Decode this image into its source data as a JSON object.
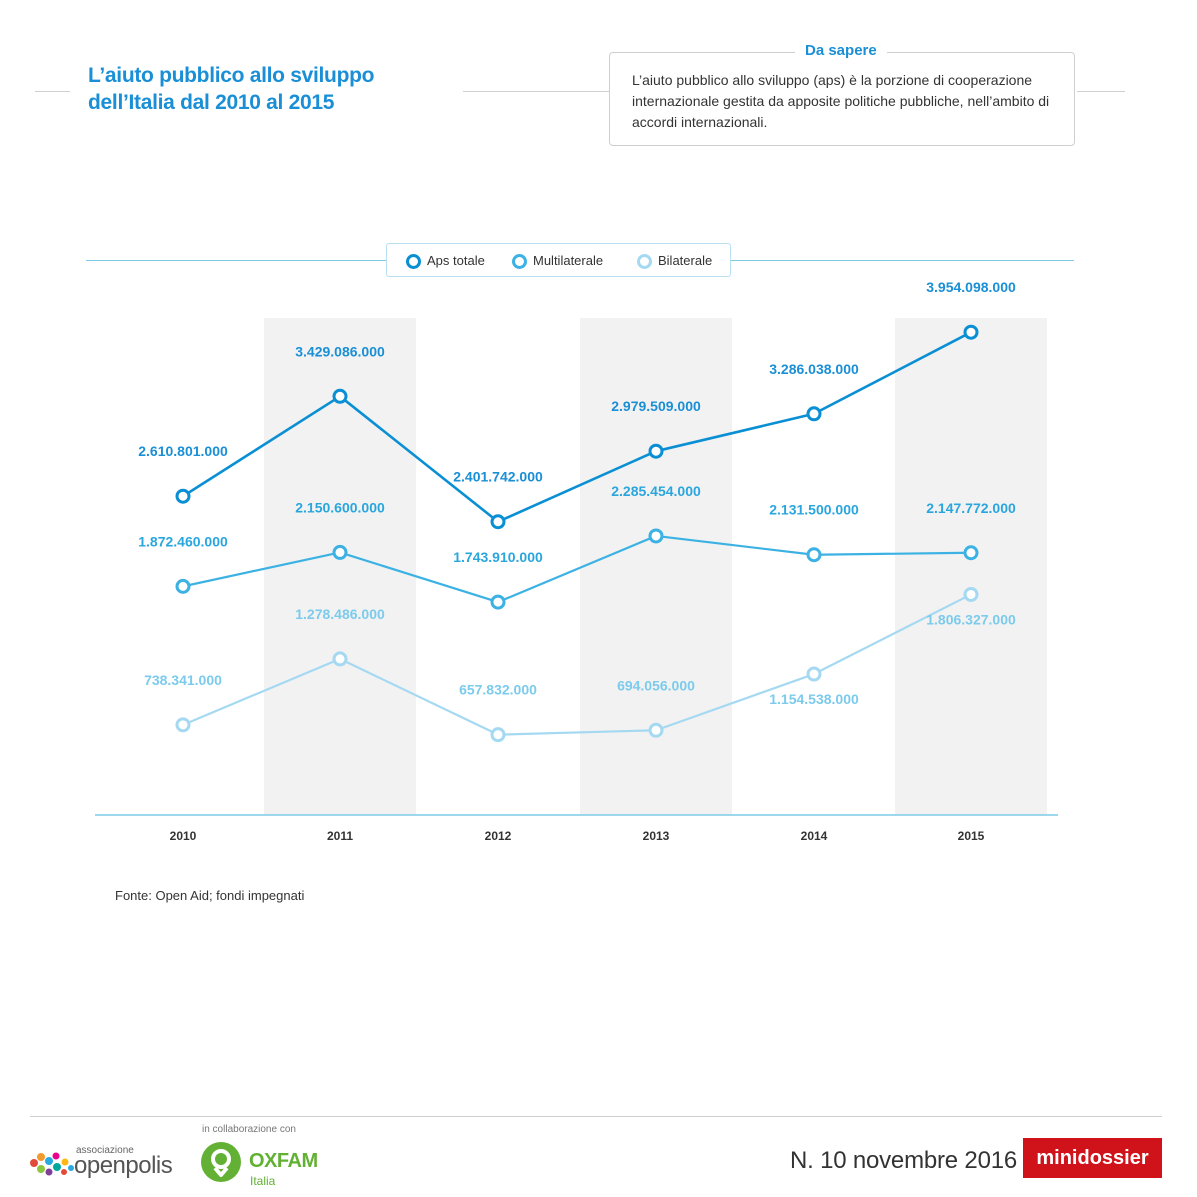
{
  "header": {
    "title": "L’aiuto pubblico allo sviluppo dell’Italia dal 2010 al 2015"
  },
  "info": {
    "title": "Da sapere",
    "text": "L’aiuto pubblico allo sviluppo (aps) è la porzione di cooperazione internazionale gestita da apposite politiche pubbliche, nell’ambito di accordi internazionali."
  },
  "chart_data": {
    "type": "line",
    "categories": [
      "2010",
      "2011",
      "2012",
      "2013",
      "2014",
      "2015"
    ],
    "series": [
      {
        "name": "Aps totale",
        "values": [
          2610801000,
          3429086000,
          2401742000,
          2979509000,
          3286038000,
          3954098000
        ],
        "labels": [
          "2.610.801.000",
          "3.429.086.000",
          "2.401.742.000",
          "2.979.509.000",
          "3.286.038.000",
          "3.954.098.000"
        ],
        "color": "#0a8fd4",
        "label_color": "#1a8fd6"
      },
      {
        "name": "Multilaterale",
        "values": [
          1872460000,
          2150600000,
          1743910000,
          2285454000,
          2131500000,
          2147772000
        ],
        "labels": [
          "1.872.460.000",
          "2.150.600.000",
          "1.743.910.000",
          "2.285.454.000",
          "2.131.500.000",
          "2.147.772.000"
        ],
        "color": "#3cb2e4",
        "label_color": "#2aa6de"
      },
      {
        "name": "Bilaterale",
        "values": [
          738341000,
          1278486000,
          657832000,
          694056000,
          1154538000,
          1806327000
        ],
        "labels": [
          "738.341.000",
          "1.278.486.000",
          "657.832.000",
          "694.056.000",
          "1.154.538.000",
          "1.806.327.000"
        ],
        "color": "#a5d9f2",
        "label_color": "#7ccbec"
      }
    ],
    "legend_position": "top-center",
    "shaded_columns": [
      "2011",
      "2013",
      "2015"
    ],
    "grid": false
  },
  "source": "Fonte: Open Aid; fondi impegnati",
  "footer": {
    "collaboration": "in collaborazione con",
    "openpolis_small": "associazione",
    "openpolis_big": "openpolis",
    "oxfam_name": "OXFAM",
    "oxfam_sub": "Italia",
    "issue": "N. 10  novembre 2016",
    "badge": "minidossier"
  }
}
